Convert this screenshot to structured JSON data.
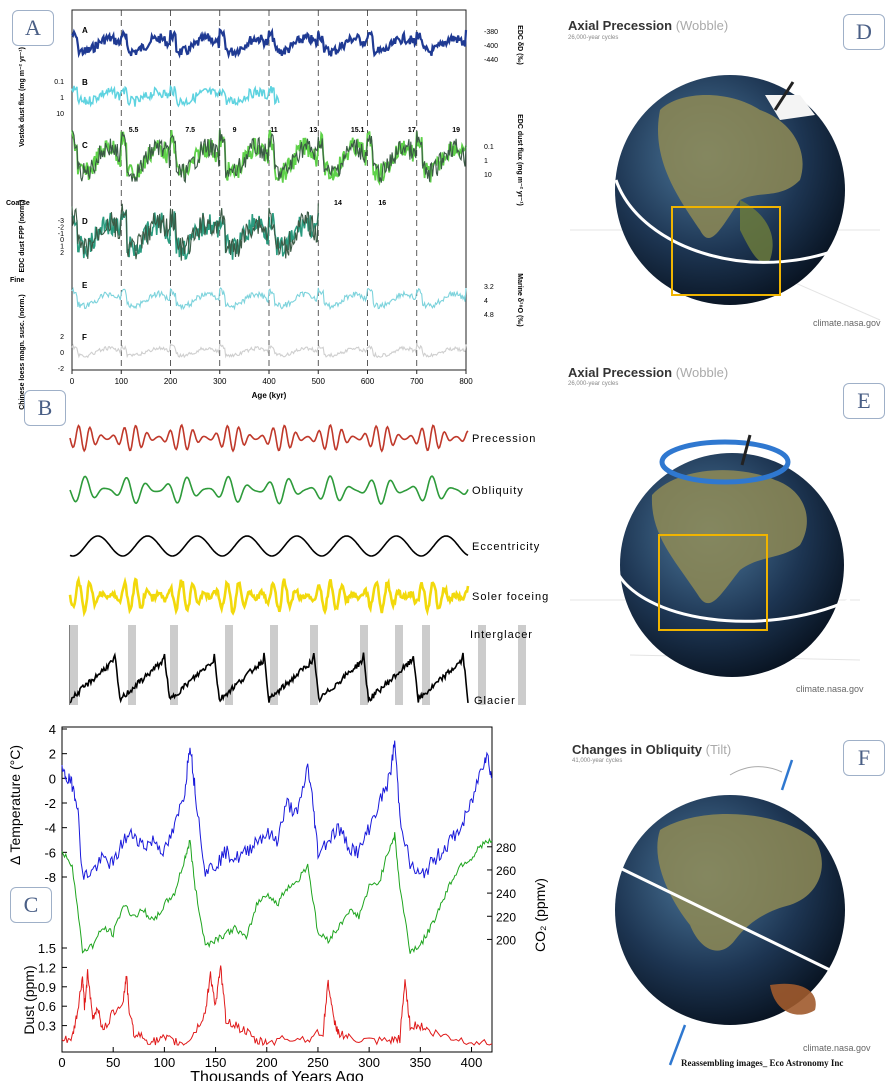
{
  "panels": {
    "A": {
      "tag": "A"
    },
    "B": {
      "tag": "B"
    },
    "C": {
      "tag": "C"
    },
    "D": {
      "tag": "D",
      "title": "Axial Precession",
      "title_soft": "(Wobble)",
      "subtitle": "26,000-year cycles",
      "credit": "climate.nasa.gov"
    },
    "E": {
      "tag": "E",
      "title": "Axial Precession",
      "title_soft": "(Wobble)",
      "subtitle": "26,000-year cycles",
      "credit": "climate.nasa.gov"
    },
    "F": {
      "tag": "F",
      "title": "Changes in Obliquity",
      "title_soft": "(Tilt)",
      "subtitle": "41,000-year cycles",
      "credit": "climate.nasa.gov",
      "footer": "Reassembling images_ Eco Astronomy Inc"
    }
  },
  "colors": {
    "navy": "#1f3a93",
    "cyan": "#5fd3e0",
    "lightgreen": "#5fd24a",
    "darkgreen": "#3b5a45",
    "teal": "#2a9b7f",
    "lightcyan": "#7dd3dc",
    "grey": "#cfcfcf",
    "red": "#c0392b",
    "green": "#2e9b3b",
    "black": "#000000",
    "yellow": "#f2d90c",
    "blue": "#1a1adb",
    "co2green": "#1fa51f",
    "dustred": "#e01b1b"
  },
  "chart_data": [
    {
      "type": "line",
      "panel": "A",
      "xlabel": "Age (kyr)",
      "xlim": [
        0,
        800
      ],
      "x_ticks": [
        "0",
        "100",
        "200",
        "300",
        "400",
        "500",
        "600",
        "700",
        "800"
      ],
      "stage_labels_top": [
        "5.5",
        "7.5",
        "9",
        "11",
        "13",
        "15.1",
        "17",
        "19"
      ],
      "stage_labels_bottom": [
        "14",
        "16"
      ],
      "series": [
        {
          "name": "A",
          "right_label": "EDC δD (‰)",
          "right_ticks": [
            "-380",
            "-400",
            "-440"
          ],
          "color_key": "navy",
          "xmax": 800
        },
        {
          "name": "B",
          "left_label": "Vostok dust flux (mg m⁻² yr⁻¹)",
          "left_ticks": [
            "0.1",
            "1",
            "10"
          ],
          "color_key": "cyan",
          "xmax": 420
        },
        {
          "name": "C",
          "right_label": "EDC dust flux (mg m⁻² yr⁻¹)",
          "right_ticks": [
            "0.1",
            "1",
            "10"
          ],
          "color_key": "lightgreen",
          "xmax": 800
        },
        {
          "name": "D",
          "left_label": "EDC dust FPP (norm.)",
          "left_ticks": [
            "-3",
            "-2",
            "-1",
            "0",
            "1",
            "2"
          ],
          "top_word": "Coarse",
          "bottom_word": "Fine",
          "color_key": "teal",
          "xmax": 500
        },
        {
          "name": "E",
          "right_label": "Marine δ¹⁸O (‰)",
          "right_ticks": [
            "3.2",
            "4",
            "4.8"
          ],
          "color_key": "lightcyan",
          "xmax": 800
        },
        {
          "name": "F",
          "left_label": "Chinese loess magn. susc. (norm.)",
          "left_ticks": [
            "2",
            "0",
            "-2"
          ],
          "color_key": "grey",
          "xmax": 800
        }
      ]
    },
    {
      "type": "line",
      "panel": "B",
      "series": [
        {
          "name": "Precession",
          "color_key": "red",
          "period": 23,
          "amp": 1.0
        },
        {
          "name": "Obliquity",
          "color_key": "green",
          "period": 41,
          "amp": 1.0
        },
        {
          "name": "Eccentricity",
          "color_key": "black",
          "period": 100,
          "amp": 1.0
        },
        {
          "name": "Soler foceing",
          "color_key": "yellow",
          "period": 23,
          "amp": 1.0
        }
      ],
      "glacial_labels": {
        "top": "Interglacer",
        "bottom": "Glacier"
      }
    },
    {
      "type": "line",
      "panel": "C",
      "xlabel": "Thousands of Years Ago",
      "xlim": [
        0,
        420
      ],
      "x_ticks": [
        0,
        50,
        100,
        150,
        200,
        250,
        300,
        350,
        400
      ],
      "temperature": {
        "ylabel": "Δ Temperature (°C)",
        "ylim": [
          -8,
          4
        ],
        "ticks": [
          4,
          2,
          0,
          -2,
          -4,
          -6,
          -8
        ],
        "color_key": "blue",
        "x": [
          0,
          5,
          10,
          15,
          20,
          30,
          40,
          50,
          60,
          70,
          80,
          90,
          100,
          110,
          120,
          125,
          130,
          140,
          150,
          160,
          170,
          180,
          190,
          200,
          210,
          220,
          230,
          240,
          245,
          250,
          260,
          270,
          280,
          290,
          300,
          310,
          320,
          325,
          330,
          340,
          350,
          360,
          370,
          380,
          390,
          400,
          410,
          415,
          420
        ],
        "y": [
          0.5,
          0,
          -0.5,
          -2,
          -8,
          -7.5,
          -6.5,
          -7,
          -5,
          -4.5,
          -5.5,
          -5,
          -6,
          -4,
          -1,
          3,
          -1,
          -7.5,
          -7,
          -6,
          -6.5,
          -6,
          -5,
          -4.5,
          -5,
          -2,
          -3,
          1,
          -2,
          -6,
          -5,
          -4,
          -5.5,
          -6,
          -4,
          -2,
          0,
          3,
          -3,
          -7,
          -8,
          -7,
          -6,
          -5,
          -4,
          -2,
          1,
          2,
          0
        ]
      },
      "co2": {
        "ylabel": "CO₂ (ppmv)",
        "ylim": [
          180,
          300
        ],
        "ticks": [
          280,
          260,
          240,
          220,
          200
        ],
        "color_key": "co2green",
        "x": [
          0,
          10,
          20,
          30,
          40,
          50,
          60,
          70,
          80,
          90,
          100,
          110,
          120,
          125,
          130,
          140,
          150,
          160,
          170,
          180,
          190,
          200,
          210,
          220,
          230,
          240,
          250,
          260,
          270,
          280,
          290,
          300,
          310,
          320,
          325,
          330,
          340,
          350,
          360,
          370,
          380,
          390,
          400,
          410,
          420
        ],
        "y": [
          275,
          265,
          190,
          195,
          210,
          205,
          230,
          220,
          225,
          215,
          230,
          240,
          270,
          285,
          245,
          195,
          200,
          205,
          210,
          200,
          230,
          240,
          230,
          245,
          250,
          265,
          205,
          200,
          210,
          225,
          220,
          245,
          250,
          280,
          290,
          245,
          190,
          195,
          210,
          230,
          250,
          265,
          270,
          282,
          285
        ]
      },
      "dust": {
        "ylabel": "Dust (ppm)",
        "ylim": [
          0,
          1.5
        ],
        "ticks": [
          1.5,
          1.2,
          0.9,
          0.6,
          0.3
        ],
        "color_key": "dustred",
        "x": [
          0,
          10,
          15,
          20,
          22,
          25,
          30,
          35,
          40,
          50,
          60,
          63,
          65,
          70,
          80,
          90,
          100,
          110,
          120,
          130,
          140,
          145,
          150,
          155,
          160,
          170,
          180,
          190,
          200,
          220,
          240,
          255,
          260,
          265,
          270,
          280,
          300,
          320,
          330,
          335,
          340,
          350,
          360,
          380,
          400,
          420
        ],
        "y": [
          0.05,
          0.1,
          0.5,
          1.05,
          0.6,
          1.1,
          0.4,
          0.6,
          0.2,
          0.5,
          0.7,
          1.1,
          0.6,
          0.2,
          0.1,
          0.05,
          0.1,
          0.05,
          0.02,
          0.2,
          0.5,
          1.1,
          0.6,
          1.2,
          0.4,
          0.3,
          0.2,
          0.05,
          0.05,
          0.1,
          0.1,
          0.2,
          1.0,
          0.4,
          0.2,
          0.1,
          0.05,
          0.05,
          0.1,
          1.0,
          0.3,
          0.3,
          0.2,
          0.1,
          0.05,
          0.02
        ]
      }
    }
  ]
}
